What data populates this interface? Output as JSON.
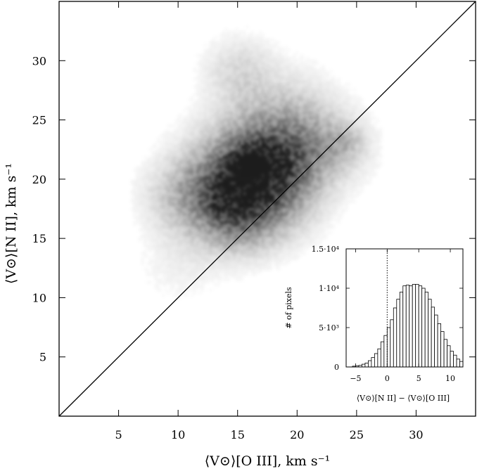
{
  "chart_data": [
    {
      "type": "heatmap",
      "title": "",
      "xlabel": "⟨V⊙⟩[O III],   km s⁻¹",
      "ylabel": "⟨V⊙⟩[N II],   km s⁻¹",
      "xlim": [
        0,
        35
      ],
      "ylim": [
        0,
        35
      ],
      "xticks": [
        5,
        10,
        15,
        20,
        25,
        30
      ],
      "yticks": [
        5,
        10,
        15,
        20,
        25,
        30
      ],
      "reference_line": {
        "label": "",
        "x": [
          0,
          35
        ],
        "y": [
          0,
          35
        ]
      },
      "grid": false,
      "density_blobs": [
        {
          "x": 15.5,
          "y": 19.5,
          "sx": 3.2,
          "sy": 3.0,
          "weight": 0.9
        },
        {
          "x": 15.8,
          "y": 21.0,
          "sx": 1.2,
          "sy": 1.0,
          "weight": 0.9
        },
        {
          "x": 17.5,
          "y": 20.5,
          "sx": 2.5,
          "sy": 2.5,
          "weight": 0.6
        },
        {
          "x": 14.5,
          "y": 17.5,
          "sx": 2.0,
          "sy": 2.0,
          "weight": 0.6
        },
        {
          "x": 19.0,
          "y": 24.0,
          "sx": 3.0,
          "sy": 3.0,
          "weight": 0.35
        },
        {
          "x": 11.0,
          "y": 18.5,
          "sx": 2.5,
          "sy": 2.0,
          "weight": 0.3
        },
        {
          "x": 21.0,
          "y": 22.5,
          "sx": 3.0,
          "sy": 2.0,
          "weight": 0.3
        },
        {
          "x": 15.0,
          "y": 29.0,
          "sx": 2.0,
          "sy": 2.0,
          "weight": 0.2
        },
        {
          "x": 10.0,
          "y": 13.0,
          "sx": 2.5,
          "sy": 2.5,
          "weight": 0.08
        },
        {
          "x": 24.0,
          "y": 23.0,
          "sx": 1.0,
          "sy": 1.0,
          "weight": 0.2
        }
      ]
    },
    {
      "type": "bar",
      "title": "",
      "xlabel": "⟨V⊙⟩[N II] − ⟨V⊙⟩[O III]",
      "ylabel": "# of pixels",
      "xlim": [
        -6.5,
        12
      ],
      "ylim": [
        0,
        15000
      ],
      "xticks": [
        -5,
        0,
        5,
        10
      ],
      "yticks": [
        {
          "value": 0,
          "label": "0"
        },
        {
          "value": 5000,
          "label": "5·10³"
        },
        {
          "value": 10000,
          "label": "1·10⁴"
        },
        {
          "value": 15000,
          "label": "1.5·10⁴"
        }
      ],
      "bin_width": 0.5,
      "bin_start": -6.5,
      "values": [
        0,
        0,
        100,
        150,
        200,
        350,
        500,
        800,
        1200,
        1700,
        2300,
        3200,
        4000,
        5000,
        6000,
        7500,
        8600,
        9500,
        10300,
        10400,
        10300,
        10500,
        10500,
        10300,
        10000,
        9500,
        8600,
        7600,
        6600,
        5500,
        4500,
        3500,
        2700,
        2000,
        1500,
        1000,
        700
      ],
      "zero_line": 0
    }
  ]
}
